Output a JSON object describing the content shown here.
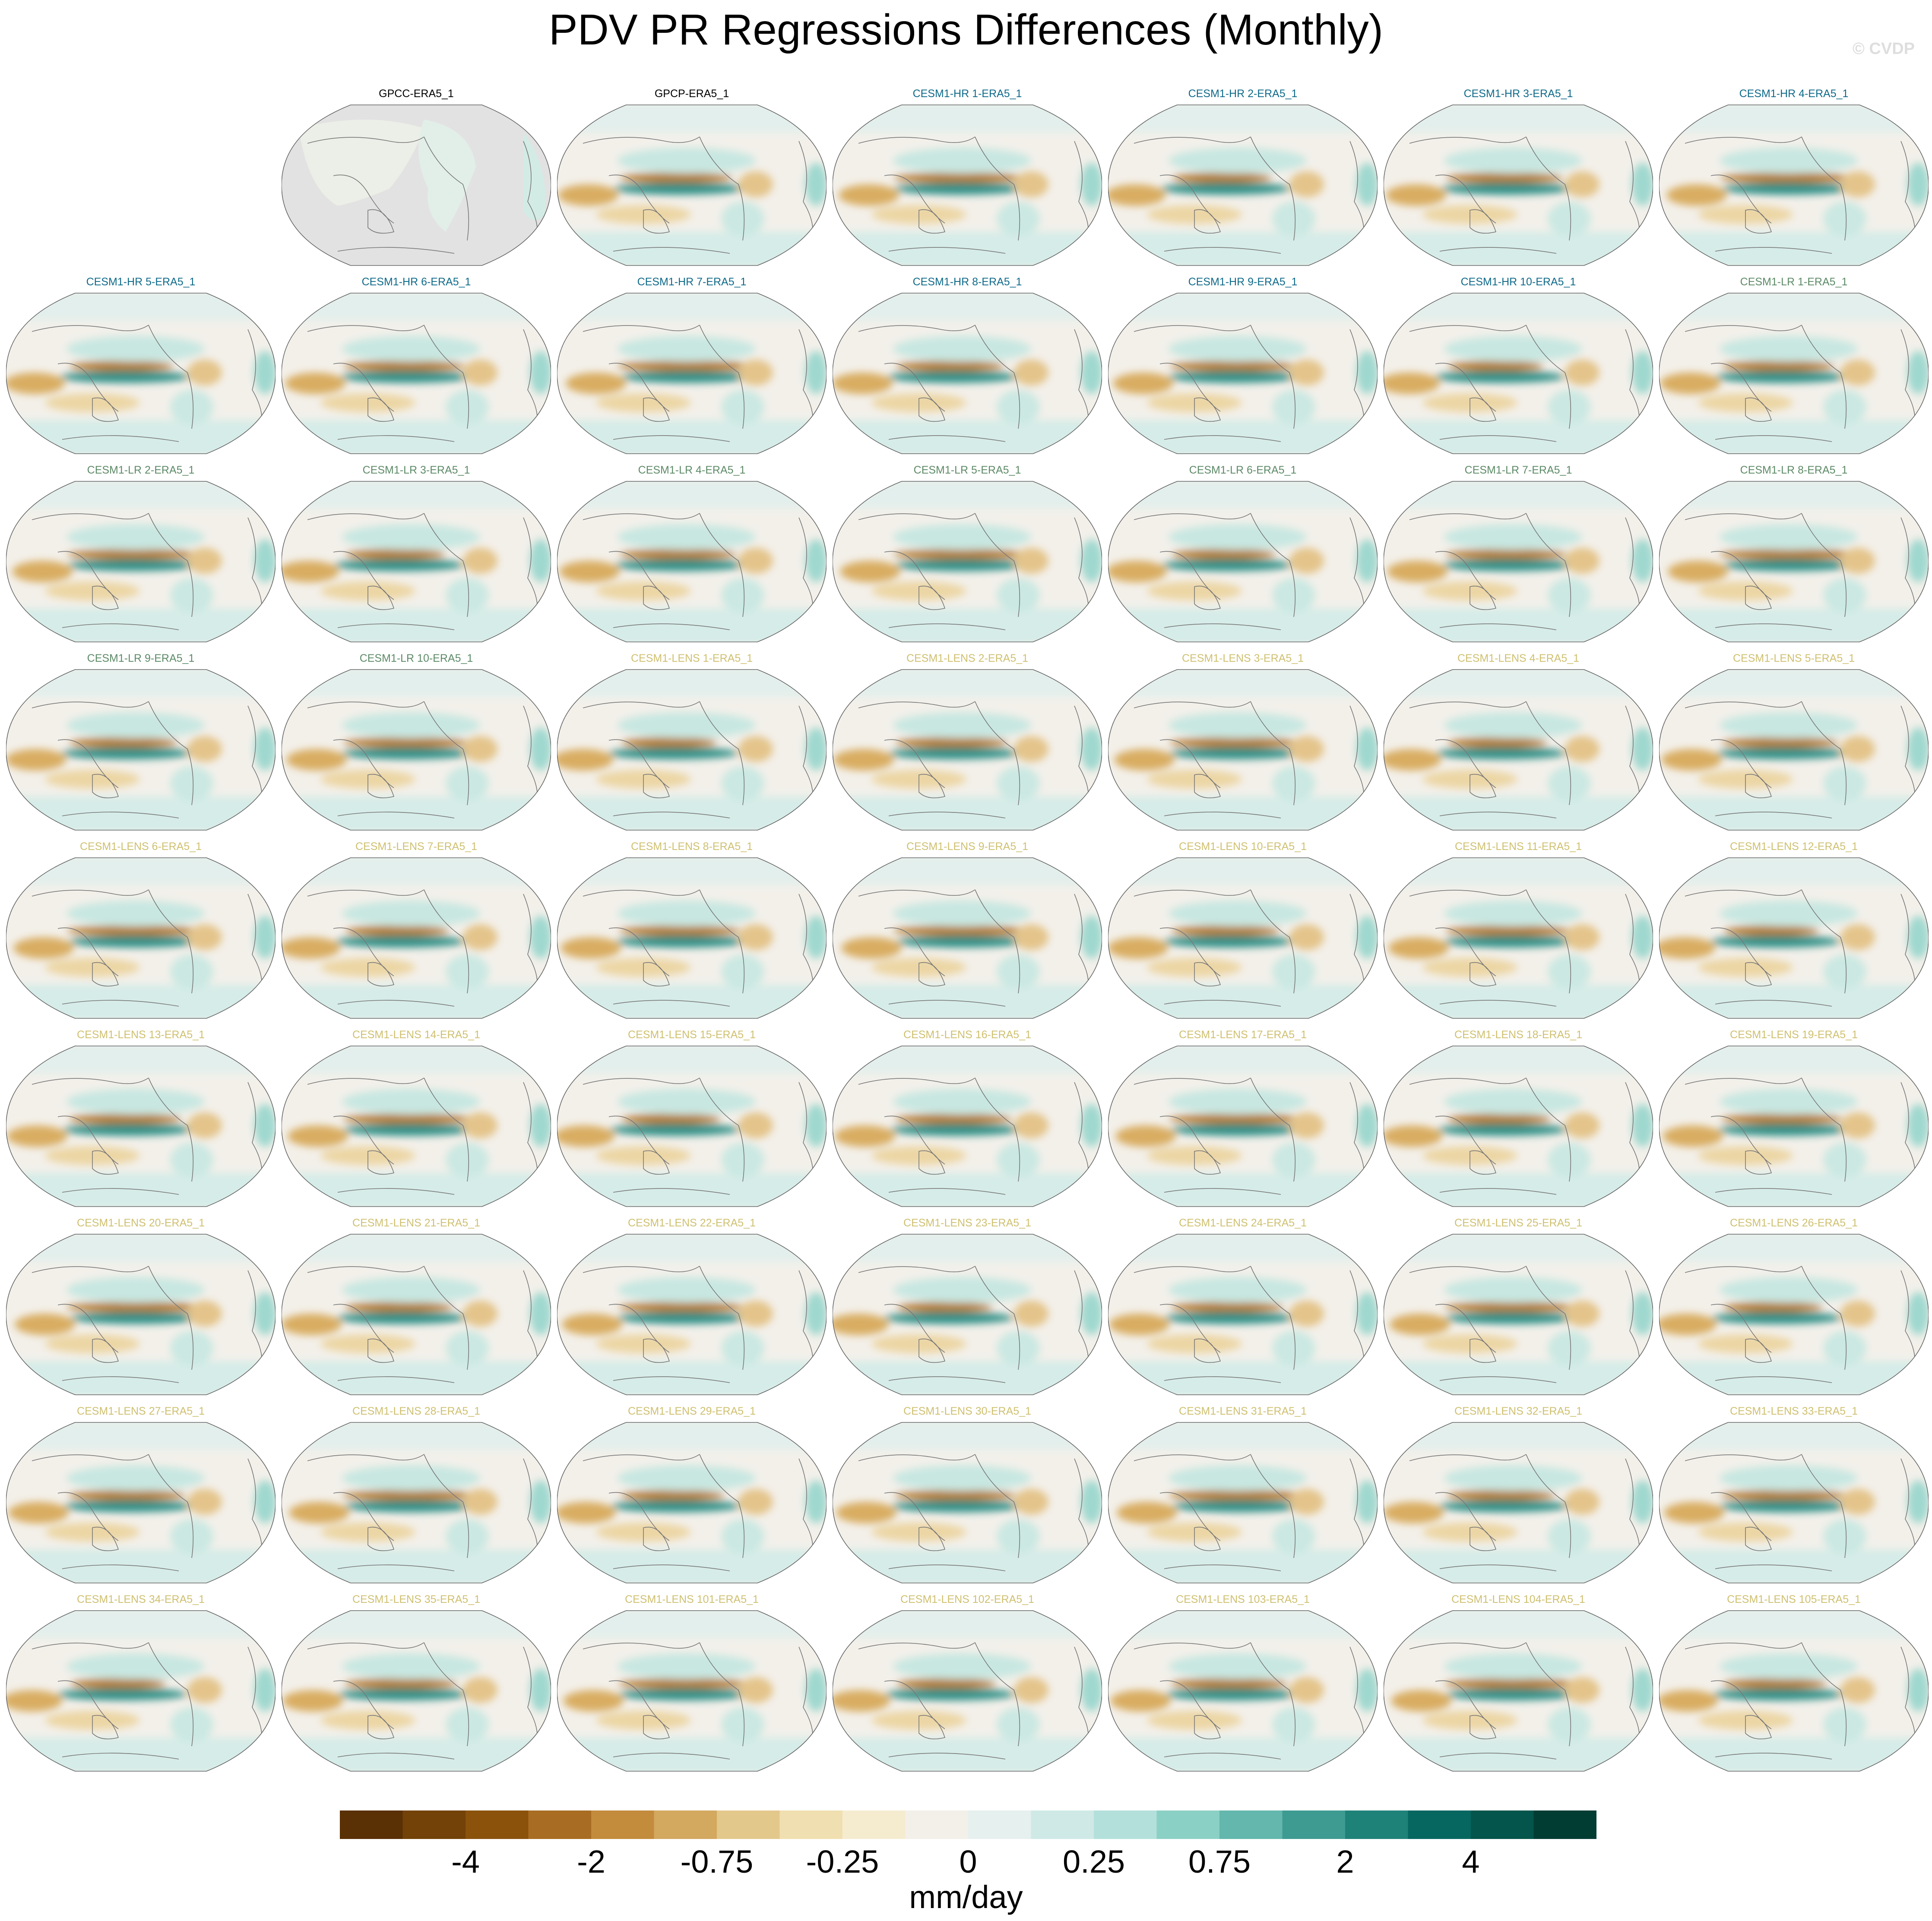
{
  "title": "PDV PR Regressions Differences (Monthly)",
  "watermark": "© CVDP",
  "group_colors": {
    "obs": "#000000",
    "CESM1-HR": "#0f6a8a",
    "CESM1-LR": "#5c8a66",
    "CESM1-LENS": "#cfc070"
  },
  "panels": [
    {
      "title": "GPCC-ERA5_1",
      "group": "obs",
      "land_only": true
    },
    {
      "title": "GPCP-ERA5_1",
      "group": "obs"
    },
    {
      "title": "CESM1-HR 1-ERA5_1",
      "group": "CESM1-HR"
    },
    {
      "title": "CESM1-HR 2-ERA5_1",
      "group": "CESM1-HR"
    },
    {
      "title": "CESM1-HR 3-ERA5_1",
      "group": "CESM1-HR"
    },
    {
      "title": "CESM1-HR 4-ERA5_1",
      "group": "CESM1-HR"
    },
    {
      "title": "CESM1-HR 5-ERA5_1",
      "group": "CESM1-HR"
    },
    {
      "title": "CESM1-HR 6-ERA5_1",
      "group": "CESM1-HR"
    },
    {
      "title": "CESM1-HR 7-ERA5_1",
      "group": "CESM1-HR"
    },
    {
      "title": "CESM1-HR 8-ERA5_1",
      "group": "CESM1-HR"
    },
    {
      "title": "CESM1-HR 9-ERA5_1",
      "group": "CESM1-HR"
    },
    {
      "title": "CESM1-HR 10-ERA5_1",
      "group": "CESM1-HR"
    },
    {
      "title": "CESM1-LR 1-ERA5_1",
      "group": "CESM1-LR"
    },
    {
      "title": "CESM1-LR 2-ERA5_1",
      "group": "CESM1-LR"
    },
    {
      "title": "CESM1-LR 3-ERA5_1",
      "group": "CESM1-LR"
    },
    {
      "title": "CESM1-LR 4-ERA5_1",
      "group": "CESM1-LR"
    },
    {
      "title": "CESM1-LR 5-ERA5_1",
      "group": "CESM1-LR"
    },
    {
      "title": "CESM1-LR 6-ERA5_1",
      "group": "CESM1-LR"
    },
    {
      "title": "CESM1-LR 7-ERA5_1",
      "group": "CESM1-LR"
    },
    {
      "title": "CESM1-LR 8-ERA5_1",
      "group": "CESM1-LR"
    },
    {
      "title": "CESM1-LR 9-ERA5_1",
      "group": "CESM1-LR"
    },
    {
      "title": "CESM1-LR 10-ERA5_1",
      "group": "CESM1-LR"
    },
    {
      "title": "CESM1-LENS 1-ERA5_1",
      "group": "CESM1-LENS"
    },
    {
      "title": "CESM1-LENS 2-ERA5_1",
      "group": "CESM1-LENS"
    },
    {
      "title": "CESM1-LENS 3-ERA5_1",
      "group": "CESM1-LENS"
    },
    {
      "title": "CESM1-LENS 4-ERA5_1",
      "group": "CESM1-LENS"
    },
    {
      "title": "CESM1-LENS 5-ERA5_1",
      "group": "CESM1-LENS"
    },
    {
      "title": "CESM1-LENS 6-ERA5_1",
      "group": "CESM1-LENS"
    },
    {
      "title": "CESM1-LENS 7-ERA5_1",
      "group": "CESM1-LENS"
    },
    {
      "title": "CESM1-LENS 8-ERA5_1",
      "group": "CESM1-LENS"
    },
    {
      "title": "CESM1-LENS 9-ERA5_1",
      "group": "CESM1-LENS"
    },
    {
      "title": "CESM1-LENS 10-ERA5_1",
      "group": "CESM1-LENS"
    },
    {
      "title": "CESM1-LENS 11-ERA5_1",
      "group": "CESM1-LENS"
    },
    {
      "title": "CESM1-LENS 12-ERA5_1",
      "group": "CESM1-LENS"
    },
    {
      "title": "CESM1-LENS 13-ERA5_1",
      "group": "CESM1-LENS"
    },
    {
      "title": "CESM1-LENS 14-ERA5_1",
      "group": "CESM1-LENS"
    },
    {
      "title": "CESM1-LENS 15-ERA5_1",
      "group": "CESM1-LENS"
    },
    {
      "title": "CESM1-LENS 16-ERA5_1",
      "group": "CESM1-LENS"
    },
    {
      "title": "CESM1-LENS 17-ERA5_1",
      "group": "CESM1-LENS"
    },
    {
      "title": "CESM1-LENS 18-ERA5_1",
      "group": "CESM1-LENS"
    },
    {
      "title": "CESM1-LENS 19-ERA5_1",
      "group": "CESM1-LENS"
    },
    {
      "title": "CESM1-LENS 20-ERA5_1",
      "group": "CESM1-LENS"
    },
    {
      "title": "CESM1-LENS 21-ERA5_1",
      "group": "CESM1-LENS"
    },
    {
      "title": "CESM1-LENS 22-ERA5_1",
      "group": "CESM1-LENS"
    },
    {
      "title": "CESM1-LENS 23-ERA5_1",
      "group": "CESM1-LENS"
    },
    {
      "title": "CESM1-LENS 24-ERA5_1",
      "group": "CESM1-LENS"
    },
    {
      "title": "CESM1-LENS 25-ERA5_1",
      "group": "CESM1-LENS"
    },
    {
      "title": "CESM1-LENS 26-ERA5_1",
      "group": "CESM1-LENS"
    },
    {
      "title": "CESM1-LENS 27-ERA5_1",
      "group": "CESM1-LENS"
    },
    {
      "title": "CESM1-LENS 28-ERA5_1",
      "group": "CESM1-LENS"
    },
    {
      "title": "CESM1-LENS 29-ERA5_1",
      "group": "CESM1-LENS"
    },
    {
      "title": "CESM1-LENS 30-ERA5_1",
      "group": "CESM1-LENS"
    },
    {
      "title": "CESM1-LENS 31-ERA5_1",
      "group": "CESM1-LENS"
    },
    {
      "title": "CESM1-LENS 32-ERA5_1",
      "group": "CESM1-LENS"
    },
    {
      "title": "CESM1-LENS 33-ERA5_1",
      "group": "CESM1-LENS"
    },
    {
      "title": "CESM1-LENS 34-ERA5_1",
      "group": "CESM1-LENS"
    },
    {
      "title": "CESM1-LENS 35-ERA5_1",
      "group": "CESM1-LENS"
    },
    {
      "title": "CESM1-LENS 101-ERA5_1",
      "group": "CESM1-LENS"
    },
    {
      "title": "CESM1-LENS 102-ERA5_1",
      "group": "CESM1-LENS"
    },
    {
      "title": "CESM1-LENS 103-ERA5_1",
      "group": "CESM1-LENS"
    },
    {
      "title": "CESM1-LENS 104-ERA5_1",
      "group": "CESM1-LENS"
    },
    {
      "title": "CESM1-LENS 105-ERA5_1",
      "group": "CESM1-LENS"
    }
  ],
  "chart_data": {
    "type": "heatmap",
    "title": "PDV PR Regressions Differences (Monthly)",
    "projection": "global map, Pacific-centered",
    "missing_color": "#e2e2e2",
    "colorbar": {
      "units": "mm/day",
      "colors": [
        "#5a3005",
        "#734208",
        "#8a520b",
        "#a86d22",
        "#c38b3c",
        "#d3a85f",
        "#e3c88c",
        "#f0dfb0",
        "#f5ecd0",
        "#f3f0ea",
        "#e6f0ee",
        "#cfe9e6",
        "#b3e0db",
        "#8bd0c4",
        "#63b7ad",
        "#3e9b92",
        "#1f8279",
        "#066760",
        "#04554b",
        "#023d33"
      ],
      "tick_labels": [
        "-4",
        "-2",
        "-0.75",
        "-0.25",
        "0",
        "0.25",
        "0.75",
        "2",
        "4"
      ]
    }
  }
}
